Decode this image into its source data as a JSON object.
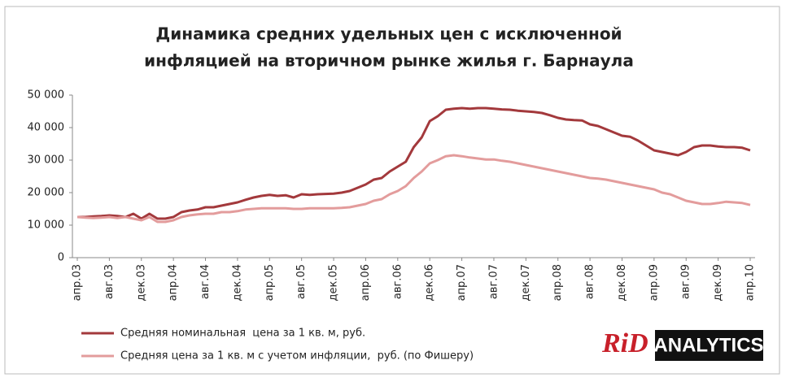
{
  "chart_data": {
    "type": "line",
    "title": "Динамика средних удельных цен с исключенной инфляцией на вторичном рынке жилья г. Барнаула",
    "title_lines": [
      "Динамика средних удельных цен с исключенной",
      "инфляцией на вторичном рынке жилья г. Барнаула"
    ],
    "categories": [
      "апр.03",
      null,
      null,
      null,
      "авг.03",
      null,
      null,
      null,
      "дек.03",
      null,
      null,
      null,
      "апр.04",
      null,
      null,
      null,
      "авг.04",
      null,
      null,
      null,
      "дек.04",
      null,
      null,
      null,
      "апр.05",
      null,
      null,
      null,
      "авг.05",
      null,
      null,
      null,
      "дек.05",
      null,
      null,
      null,
      "апр.06",
      null,
      null,
      null,
      "авг.06",
      null,
      null,
      null,
      "дек.06",
      null,
      null,
      null,
      "апр.07",
      null,
      null,
      null,
      "авг.07",
      null,
      null,
      null,
      "дек.07",
      null,
      null,
      null,
      "апр.08",
      null,
      null,
      null,
      "авг.08",
      null,
      null,
      null,
      "дек.08",
      null,
      null,
      null,
      "апр.09",
      null,
      null,
      null,
      "авг.09",
      null,
      null,
      null,
      "дек.09",
      null,
      null,
      null,
      "апр.10"
    ],
    "series": [
      {
        "name": "Средняя номинальная  цена за 1 кв. м, руб.",
        "color": "#a3393c",
        "values": [
          12500,
          12500,
          12700,
          12800,
          13000,
          12800,
          12500,
          13500,
          12000,
          13500,
          12000,
          12000,
          12500,
          14000,
          14500,
          14800,
          15500,
          15500,
          16000,
          16500,
          17000,
          17800,
          18500,
          19000,
          19300,
          19000,
          19200,
          18500,
          19500,
          19300,
          19500,
          19600,
          19700,
          20000,
          20500,
          21500,
          22500,
          24000,
          24500,
          26500,
          28000,
          29500,
          34000,
          37000,
          42000,
          43500,
          45500,
          45800,
          46000,
          45800,
          46000,
          46000,
          45800,
          45600,
          45500,
          45200,
          45000,
          44800,
          44500,
          43800,
          43000,
          42500,
          42300,
          42200,
          41000,
          40500,
          39500,
          38500,
          37500,
          37200,
          36000,
          34500,
          33000,
          32500,
          32000,
          31500,
          32500,
          34000,
          34500,
          34500,
          34200,
          34000,
          34000,
          33800,
          33000
        ]
      },
      {
        "name": "Средняя цена за 1 кв. м с учетом инфляции,  руб. (по Фишеру)",
        "color": "#e39c9c",
        "values": [
          12500,
          12300,
          12200,
          12300,
          12500,
          12200,
          12500,
          12000,
          11500,
          12500,
          11000,
          11000,
          11500,
          12500,
          13000,
          13300,
          13500,
          13500,
          14000,
          14000,
          14300,
          14800,
          15000,
          15200,
          15200,
          15200,
          15200,
          15000,
          15000,
          15200,
          15200,
          15200,
          15200,
          15300,
          15500,
          16000,
          16500,
          17500,
          18000,
          19500,
          20500,
          22000,
          24500,
          26500,
          29000,
          30000,
          31200,
          31500,
          31200,
          30800,
          30500,
          30200,
          30200,
          29800,
          29500,
          29000,
          28500,
          28000,
          27500,
          27000,
          26500,
          26000,
          25500,
          25000,
          24500,
          24300,
          24000,
          23500,
          23000,
          22500,
          22000,
          21500,
          21000,
          20000,
          19500,
          18500,
          17500,
          17000,
          16500,
          16500,
          16800,
          17200,
          17000,
          16800,
          16200
        ]
      }
    ],
    "ylim": [
      0,
      50000
    ],
    "yticks": [
      0,
      {
        "value": 10000,
        "label": "10 000"
      },
      {
        "value": 20000,
        "label": "20 000"
      },
      {
        "value": 30000,
        "label": "30 000"
      },
      {
        "value": 40000,
        "label": "40 000"
      },
      {
        "value": 50000,
        "label": "50 000"
      }
    ],
    "grid": false
  },
  "logo": {
    "mark": "RiD",
    "text": "ANALYTICS"
  }
}
